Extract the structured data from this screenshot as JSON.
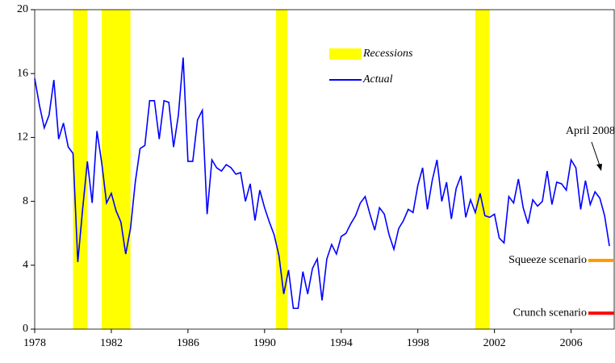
{
  "chart_data": {
    "type": "line",
    "x": [
      1978,
      1978.25,
      1978.5,
      1978.75,
      1979,
      1979.25,
      1979.5,
      1979.75,
      1980,
      1980.25,
      1980.5,
      1980.75,
      1981,
      1981.25,
      1981.5,
      1981.75,
      1982,
      1982.25,
      1982.5,
      1982.75,
      1983,
      1983.25,
      1983.5,
      1983.75,
      1984,
      1984.25,
      1984.5,
      1984.75,
      1985,
      1985.25,
      1985.5,
      1985.75,
      1986,
      1986.25,
      1986.5,
      1986.75,
      1987,
      1987.25,
      1987.5,
      1987.75,
      1988,
      1988.25,
      1988.5,
      1988.75,
      1989,
      1989.25,
      1989.5,
      1989.75,
      1990,
      1990.25,
      1990.5,
      1990.75,
      1991,
      1991.25,
      1991.5,
      1991.75,
      1992,
      1992.25,
      1992.5,
      1992.75,
      1993,
      1993.25,
      1993.5,
      1993.75,
      1994,
      1994.25,
      1994.5,
      1994.75,
      1995,
      1995.25,
      1995.5,
      1995.75,
      1996,
      1996.25,
      1996.5,
      1996.75,
      1997,
      1997.25,
      1997.5,
      1997.75,
      1998,
      1998.25,
      1998.5,
      1998.75,
      1999,
      1999.25,
      1999.5,
      1999.75,
      2000,
      2000.25,
      2000.5,
      2000.75,
      2001,
      2001.25,
      2001.5,
      2001.75,
      2002,
      2002.25,
      2002.5,
      2002.75,
      2003,
      2003.25,
      2003.5,
      2003.75,
      2004,
      2004.25,
      2004.5,
      2004.75,
      2005,
      2005.25,
      2005.5,
      2005.75,
      2006,
      2006.25,
      2006.5,
      2006.75,
      2007,
      2007.25,
      2007.5,
      2007.75,
      2008
    ],
    "series": [
      {
        "name": "Actual",
        "color": "#0000ff",
        "values": [
          15.7,
          14.0,
          12.6,
          13.4,
          15.6,
          11.9,
          12.9,
          11.4,
          11.0,
          4.2,
          7.5,
          10.5,
          7.9,
          12.4,
          10.4,
          7.9,
          8.5,
          7.4,
          6.7,
          4.7,
          6.3,
          9.2,
          11.3,
          11.5,
          14.3,
          14.3,
          11.9,
          14.3,
          14.2,
          11.4,
          13.4,
          17.0,
          10.5,
          10.5,
          13.1,
          13.7,
          7.2,
          10.6,
          10.1,
          9.9,
          10.3,
          10.1,
          9.7,
          9.8,
          8.0,
          9.1,
          6.8,
          8.7,
          7.6,
          6.7,
          5.9,
          4.6,
          2.2,
          3.7,
          1.3,
          1.3,
          3.6,
          2.2,
          3.8,
          4.4,
          1.8,
          4.4,
          5.3,
          4.7,
          5.8,
          6.0,
          6.6,
          7.1,
          7.9,
          8.3,
          7.2,
          6.2,
          7.6,
          7.2,
          5.9,
          5.0,
          6.3,
          6.8,
          7.5,
          7.3,
          9.0,
          10.1,
          7.5,
          9.3,
          10.6,
          8.0,
          9.2,
          6.9,
          8.8,
          9.6,
          7.0,
          8.1,
          7.3,
          8.5,
          7.1,
          7.0,
          7.2,
          5.7,
          5.4,
          8.3,
          7.9,
          9.4,
          7.6,
          6.6,
          8.1,
          7.7,
          8.0,
          9.9,
          7.8,
          9.2,
          9.1,
          8.7,
          10.6,
          10.1,
          7.5,
          9.3,
          7.8,
          8.6,
          8.2,
          7.1,
          5.2
        ]
      }
    ],
    "recessions": {
      "name": "Recessions",
      "color": "#ffff00",
      "spans": [
        [
          1980,
          1980.75
        ],
        [
          1981.5,
          1983
        ],
        [
          1990.6,
          1991.2
        ],
        [
          2001,
          2001.75
        ]
      ]
    },
    "scenarios": [
      {
        "name": "Squeeze scenario",
        "color": "#ff9900",
        "x": [
          2006.9,
          2008.25
        ],
        "values": [
          4.3,
          4.3
        ]
      },
      {
        "name": "Crunch scenario",
        "color": "#ff0000",
        "x": [
          2006.9,
          2008.25
        ],
        "values": [
          1.0,
          1.0
        ]
      }
    ],
    "annotation": "April 2008",
    "xlim": [
      1978,
      2008.25
    ],
    "ylim": [
      0,
      20
    ],
    "xticks": [
      1978,
      1982,
      1986,
      1990,
      1994,
      1998,
      2002,
      2006
    ],
    "yticks": [
      0,
      4,
      8,
      12,
      16,
      20
    ]
  }
}
